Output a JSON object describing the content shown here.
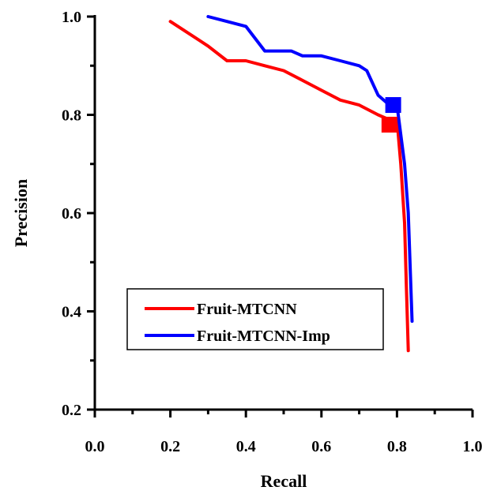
{
  "chart_data": {
    "type": "line",
    "title": "",
    "xlabel": "Recall",
    "ylabel": "Precision",
    "xlim": [
      0.0,
      1.0
    ],
    "ylim": [
      0.2,
      1.0
    ],
    "x_ticks": [
      "0.0",
      "0.2",
      "0.4",
      "0.6",
      "0.8",
      "1.0"
    ],
    "y_ticks": [
      "0.2",
      "0.4",
      "0.6",
      "0.8",
      "1.0"
    ],
    "grid": false,
    "legend_position": "lower-left",
    "series": [
      {
        "name": "Fruit-MTCNN",
        "color": "#ff0000",
        "x": [
          0.2,
          0.3,
          0.35,
          0.4,
          0.45,
          0.5,
          0.55,
          0.6,
          0.65,
          0.7,
          0.75,
          0.78,
          0.8,
          0.81,
          0.82,
          0.825,
          0.83
        ],
        "y": [
          0.99,
          0.94,
          0.91,
          0.91,
          0.9,
          0.89,
          0.87,
          0.85,
          0.83,
          0.82,
          0.8,
          0.79,
          0.79,
          0.7,
          0.58,
          0.45,
          0.32
        ],
        "marker": {
          "x": 0.78,
          "y": 0.78
        }
      },
      {
        "name": "Fruit-MTCNN-Imp",
        "color": "#0000ff",
        "x": [
          0.3,
          0.35,
          0.4,
          0.45,
          0.5,
          0.52,
          0.55,
          0.6,
          0.65,
          0.7,
          0.72,
          0.75,
          0.78,
          0.8,
          0.82,
          0.83,
          0.84
        ],
        "y": [
          1.0,
          0.99,
          0.98,
          0.93,
          0.93,
          0.93,
          0.92,
          0.92,
          0.91,
          0.9,
          0.89,
          0.84,
          0.82,
          0.82,
          0.7,
          0.6,
          0.38
        ],
        "marker": {
          "x": 0.79,
          "y": 0.82
        }
      }
    ]
  }
}
